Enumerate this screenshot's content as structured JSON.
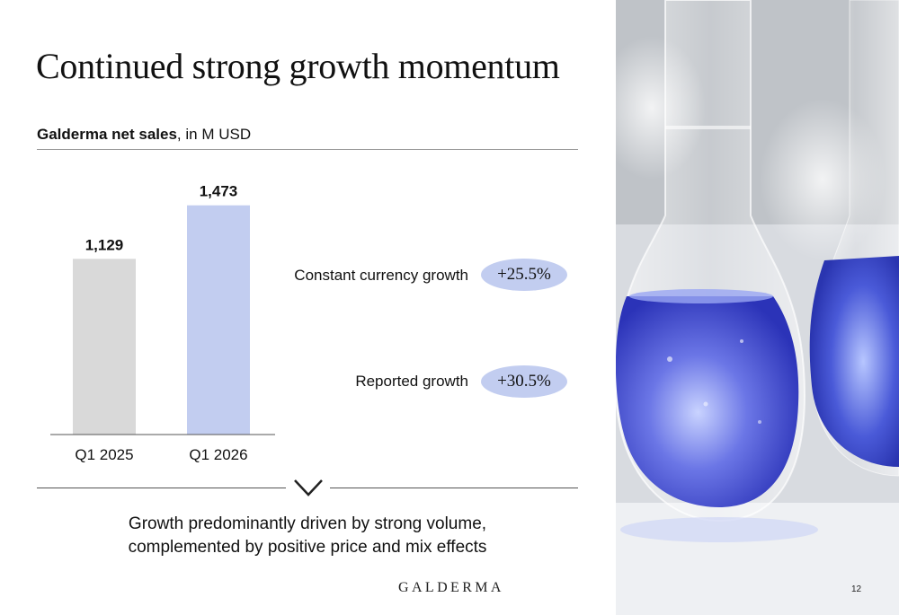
{
  "slide": {
    "title": "Continued strong growth momentum",
    "subtitle_bold": "Galderma net sales",
    "subtitle_rest": ", in M USD",
    "page_number": "12",
    "brand": "GALDERMA",
    "conclusion_line1": "Growth predominantly driven by strong volume,",
    "conclusion_line2": "complemented by positive price and mix effects"
  },
  "metrics": [
    {
      "label": "Constant currency growth",
      "value": "+25.5%"
    },
    {
      "label": "Reported growth",
      "value": "+30.5%"
    }
  ],
  "colors": {
    "bar_2025": "#d9d9d9",
    "bar_2026": "#c2cdf0",
    "pill": "#c2cdf0",
    "flask_liquid": "#3f49d6"
  },
  "chart_data": {
    "type": "bar",
    "categories": [
      "Q1 2025",
      "Q1 2026"
    ],
    "values": [
      1129,
      1473
    ],
    "value_labels": [
      "1,129",
      "1,473"
    ],
    "title": "",
    "xlabel": "",
    "ylabel": "",
    "ylim": [
      0,
      1500
    ],
    "grid": false
  }
}
